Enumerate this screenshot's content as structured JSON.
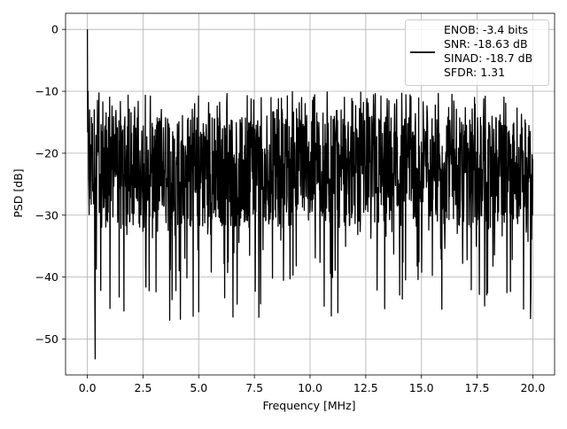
{
  "chart_data": {
    "type": "line",
    "title": "",
    "xlabel": "Frequency [MHz]",
    "ylabel": "PSD [dB]",
    "xlim": [
      -0.98,
      20.98
    ],
    "ylim": [
      -55.8,
      2.6
    ],
    "xticks": [
      0.0,
      2.5,
      5.0,
      7.5,
      10.0,
      12.5,
      15.0,
      17.5,
      20.0
    ],
    "xtick_labels": [
      "0.0",
      "2.5",
      "5.0",
      "7.5",
      "10.0",
      "12.5",
      "15.0",
      "17.5",
      "20.0"
    ],
    "yticks": [
      0,
      -10,
      -20,
      -30,
      -40,
      -50
    ],
    "ytick_labels": [
      "0",
      "−10",
      "−20",
      "−30",
      "−40",
      "−50"
    ],
    "grid": true,
    "legend_position": "top-right",
    "legend_lines": [
      "ENOB: -3.4 bits",
      "SNR: -18.63 dB",
      "SINAD: -18.7 dB",
      "SFDR: 1.31"
    ],
    "series": [
      {
        "color": "#000000",
        "x_range": [
          0,
          20
        ],
        "num_points": 1500,
        "noise_mean_db": -22,
        "noise_typical_min_db": -32,
        "noise_typical_max_db": -14,
        "noise_outlier_min_db": -47,
        "peak": {
          "x": 0.0,
          "y": 0.0
        },
        "notable_points": [
          {
            "x": 0.03,
            "y": -10
          },
          {
            "x": 0.1,
            "y": -13
          },
          {
            "x": 0.35,
            "y": -53.2
          },
          {
            "x": 5.0,
            "y": -45.6
          },
          {
            "x": 7.7,
            "y": -46.5
          },
          {
            "x": 13.35,
            "y": -45.1
          },
          {
            "x": 17.6,
            "y": -42.8
          },
          {
            "x": 19.9,
            "y": -46.7
          }
        ]
      }
    ]
  }
}
